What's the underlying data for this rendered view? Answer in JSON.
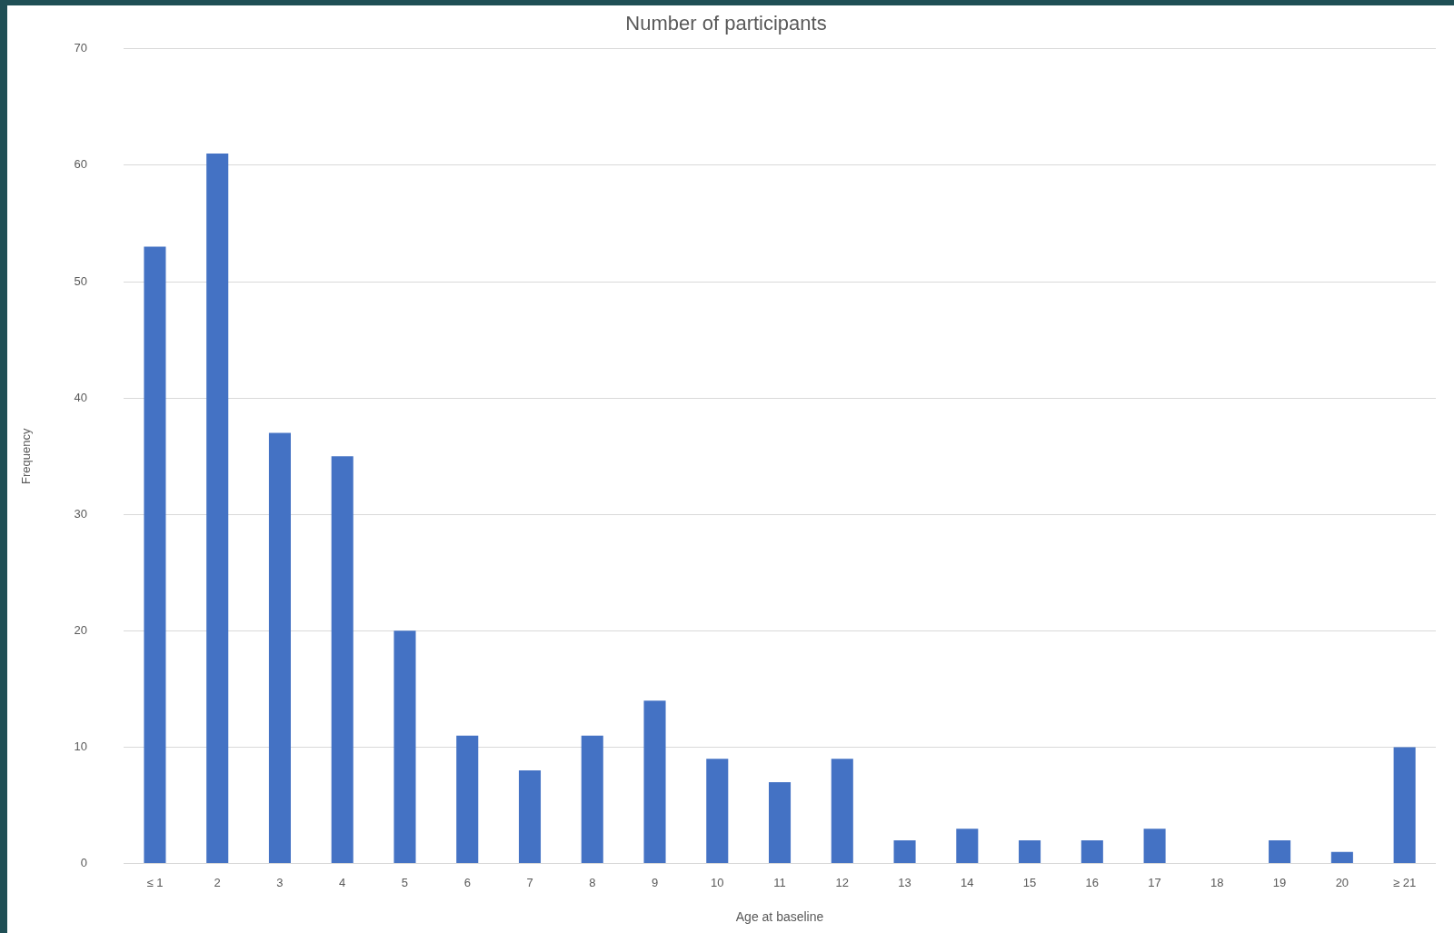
{
  "chart_data": {
    "type": "bar",
    "title": "Number of participants",
    "xlabel": "Age at baseline",
    "ylabel": "Frequency",
    "categories": [
      "≤ 1",
      "2",
      "3",
      "4",
      "5",
      "6",
      "7",
      "8",
      "9",
      "10",
      "11",
      "12",
      "13",
      "14",
      "15",
      "16",
      "17",
      "18",
      "19",
      "20",
      "≥ 21"
    ],
    "values": [
      53,
      61,
      37,
      35,
      20,
      11,
      8,
      11,
      14,
      9,
      7,
      9,
      2,
      3,
      2,
      2,
      3,
      0,
      2,
      1,
      10
    ],
    "color": "#4472c4",
    "ylim": [
      0,
      70
    ],
    "yticks": [
      0,
      10,
      20,
      30,
      40,
      50,
      60,
      70
    ],
    "grid": "y",
    "legend": false
  }
}
